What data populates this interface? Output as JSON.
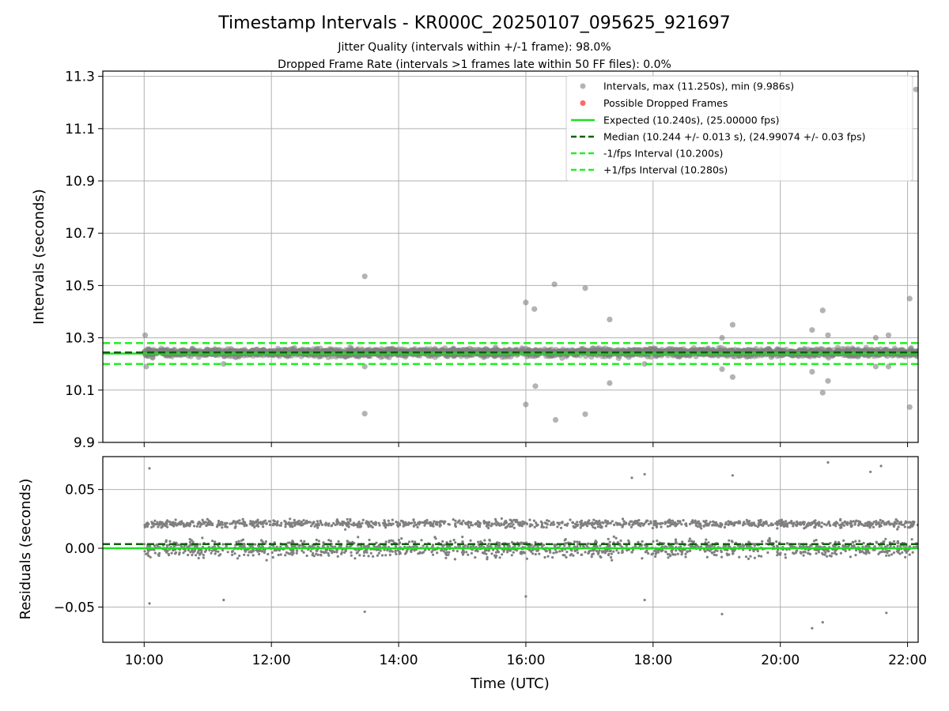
{
  "title": "Timestamp Intervals - KR000C_20250107_095625_921697",
  "subtitle1": "Jitter Quality (intervals within +/-1 frame): 98.0%",
  "subtitle2": "Dropped Frame Rate (intervals >1 frames late within 50 FF files): 0.0%",
  "colors": {
    "points": "#808080",
    "dropped": "#ff4040",
    "expected": "#22dd22",
    "median": "#006400",
    "bounds": "#22ee22",
    "grid": "#b0b0b0"
  },
  "chart_data": [
    {
      "type": "scatter",
      "ylabel": "Intervals (seconds)",
      "xlim": [
        "09:21",
        "22:10"
      ],
      "ylim": [
        9.9,
        11.32
      ],
      "yticks": [
        "9.9",
        "10.1",
        "10.3",
        "10.5",
        "10.7",
        "10.9",
        "11.1",
        "11.3"
      ],
      "grid": true,
      "legend_position": "top-right",
      "legend": [
        "Intervals, max (11.250s), min (9.986s)",
        "Possible Dropped Frames",
        "Expected (10.240s), (25.00000 fps)",
        "Median (10.244 +/- 0.013 s), (24.99074 +/- 0.03 fps)",
        "-1/fps Interval (10.200s)",
        "+1/fps Interval (10.280s)"
      ],
      "lines": {
        "expected": 10.24,
        "median": 10.244,
        "lower": 10.2,
        "upper": 10.28
      },
      "band": {
        "start": "10:00",
        "end": "22:10",
        "center": 10.244,
        "spread": 0.022,
        "count": 2600
      },
      "outliers": [
        {
          "t": "10:01",
          "y": 10.31
        },
        {
          "t": "10:02",
          "y": 10.19
        },
        {
          "t": "11:15",
          "y": 10.2
        },
        {
          "t": "13:28",
          "y": 10.535
        },
        {
          "t": "13:28",
          "y": 10.19
        },
        {
          "t": "13:28",
          "y": 10.01
        },
        {
          "t": "16:00",
          "y": 10.435
        },
        {
          "t": "16:00",
          "y": 10.045
        },
        {
          "t": "16:08",
          "y": 10.41
        },
        {
          "t": "16:09",
          "y": 10.115
        },
        {
          "t": "16:27",
          "y": 10.505
        },
        {
          "t": "16:28",
          "y": 9.986
        },
        {
          "t": "16:56",
          "y": 10.49
        },
        {
          "t": "16:56",
          "y": 10.008
        },
        {
          "t": "17:19",
          "y": 10.37
        },
        {
          "t": "17:19",
          "y": 10.127
        },
        {
          "t": "17:52",
          "y": 10.2
        },
        {
          "t": "19:05",
          "y": 10.3
        },
        {
          "t": "19:05",
          "y": 10.18
        },
        {
          "t": "19:15",
          "y": 10.35
        },
        {
          "t": "19:15",
          "y": 10.15
        },
        {
          "t": "20:30",
          "y": 10.33
        },
        {
          "t": "20:30",
          "y": 10.17
        },
        {
          "t": "20:40",
          "y": 10.405
        },
        {
          "t": "20:40",
          "y": 10.09
        },
        {
          "t": "20:45",
          "y": 10.31
        },
        {
          "t": "20:45",
          "y": 10.135
        },
        {
          "t": "21:30",
          "y": 10.3
        },
        {
          "t": "21:30",
          "y": 10.19
        },
        {
          "t": "21:42",
          "y": 10.31
        },
        {
          "t": "21:42",
          "y": 10.19
        },
        {
          "t": "22:02",
          "y": 10.45
        },
        {
          "t": "22:02",
          "y": 10.035
        },
        {
          "t": "22:08",
          "y": 11.25
        }
      ]
    },
    {
      "type": "scatter",
      "xlabel": "Time (UTC)",
      "ylabel": "Residuals (seconds)",
      "xlim": [
        "09:21",
        "22:10"
      ],
      "ylim": [
        -0.08,
        0.078
      ],
      "yticks": [
        "−0.05",
        "0.00",
        "0.05"
      ],
      "xticks": [
        "10:00",
        "12:00",
        "14:00",
        "16:00",
        "18:00",
        "20:00",
        "22:00"
      ],
      "grid": true,
      "lines": {
        "zero": 0.0,
        "median_offset": 0.0035
      },
      "clusters": [
        {
          "center": 0.0,
          "spread": 0.009
        },
        {
          "center": 0.021,
          "spread": 0.004
        }
      ],
      "count": 2600,
      "outliers": [
        {
          "t": "10:05",
          "y": 0.068
        },
        {
          "t": "10:05",
          "y": -0.047
        },
        {
          "t": "11:15",
          "y": -0.044
        },
        {
          "t": "13:28",
          "y": -0.054
        },
        {
          "t": "16:00",
          "y": -0.041
        },
        {
          "t": "17:40",
          "y": 0.06
        },
        {
          "t": "17:52",
          "y": 0.063
        },
        {
          "t": "17:52",
          "y": -0.044
        },
        {
          "t": "19:05",
          "y": -0.056
        },
        {
          "t": "19:15",
          "y": 0.062
        },
        {
          "t": "20:30",
          "y": -0.068
        },
        {
          "t": "20:40",
          "y": -0.063
        },
        {
          "t": "20:45",
          "y": 0.073
        },
        {
          "t": "21:25",
          "y": 0.065
        },
        {
          "t": "21:35",
          "y": 0.07
        },
        {
          "t": "21:40",
          "y": -0.055
        }
      ]
    }
  ]
}
